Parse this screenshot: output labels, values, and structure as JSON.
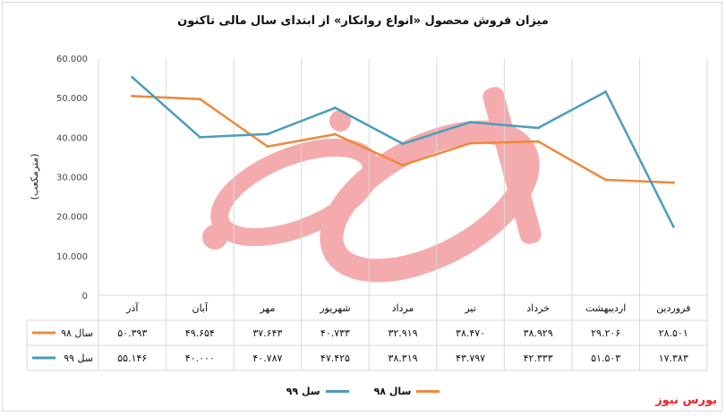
{
  "title": "میزان فروش محصول «انواع روانکار» از ابتدای سال مالی تاکنون",
  "watermark": "بورس نیوز",
  "brand_color": "#e3262c",
  "chart_data": {
    "type": "line",
    "title": "میزان فروش محصول «انواع روانکار» از ابتدای سال مالی تاکنون",
    "ylabel": "(مترمکعب)",
    "xlabel": "",
    "ylim": [
      0,
      60000
    ],
    "yticks": [
      0,
      10000,
      20000,
      30000,
      40000,
      50000,
      60000
    ],
    "ytick_labels": [
      "0",
      "10.000",
      "20.000",
      "30.000",
      "40.000",
      "50.000",
      "60.000"
    ],
    "grid": "vertical",
    "legend_position": "bottom",
    "categories": [
      "فروردین",
      "اردیبهشت",
      "خرداد",
      "تیر",
      "مرداد",
      "شهریور",
      "مهر",
      "آبان",
      "آذر"
    ],
    "series": [
      {
        "name": "سال ۹۸",
        "color": "#f0883a",
        "values": [
          28501,
          29206,
          38929,
          38470,
          32919,
          40733,
          37643,
          49654,
          50393
        ],
        "labels": [
          "۲۸.۵۰۱",
          "۲۹.۲۰۶",
          "۳۸.۹۲۹",
          "۳۸.۴۷۰",
          "۳۲.۹۱۹",
          "۴۰.۷۳۳",
          "۳۷.۶۴۳",
          "۴۹.۶۵۴",
          "۵۰.۳۹۳"
        ]
      },
      {
        "name": "سل ۹۹",
        "color": "#4a9dbb",
        "values": [
          17383,
          51503,
          42333,
          43797,
          38319,
          47425,
          40787,
          40000,
          55146
        ],
        "labels": [
          "۱۷.۳۸۳",
          "۵۱.۵۰۳",
          "۴۲.۳۳۳",
          "۴۳.۷۹۷",
          "۳۸.۳۱۹",
          "۴۷.۴۲۵",
          "۴۰.۷۸۷",
          "۴۰.۰۰۰",
          "۵۵.۱۴۶"
        ]
      }
    ],
    "legend_entries": [
      "سال ۹۸",
      "سل ۹۹"
    ]
  }
}
